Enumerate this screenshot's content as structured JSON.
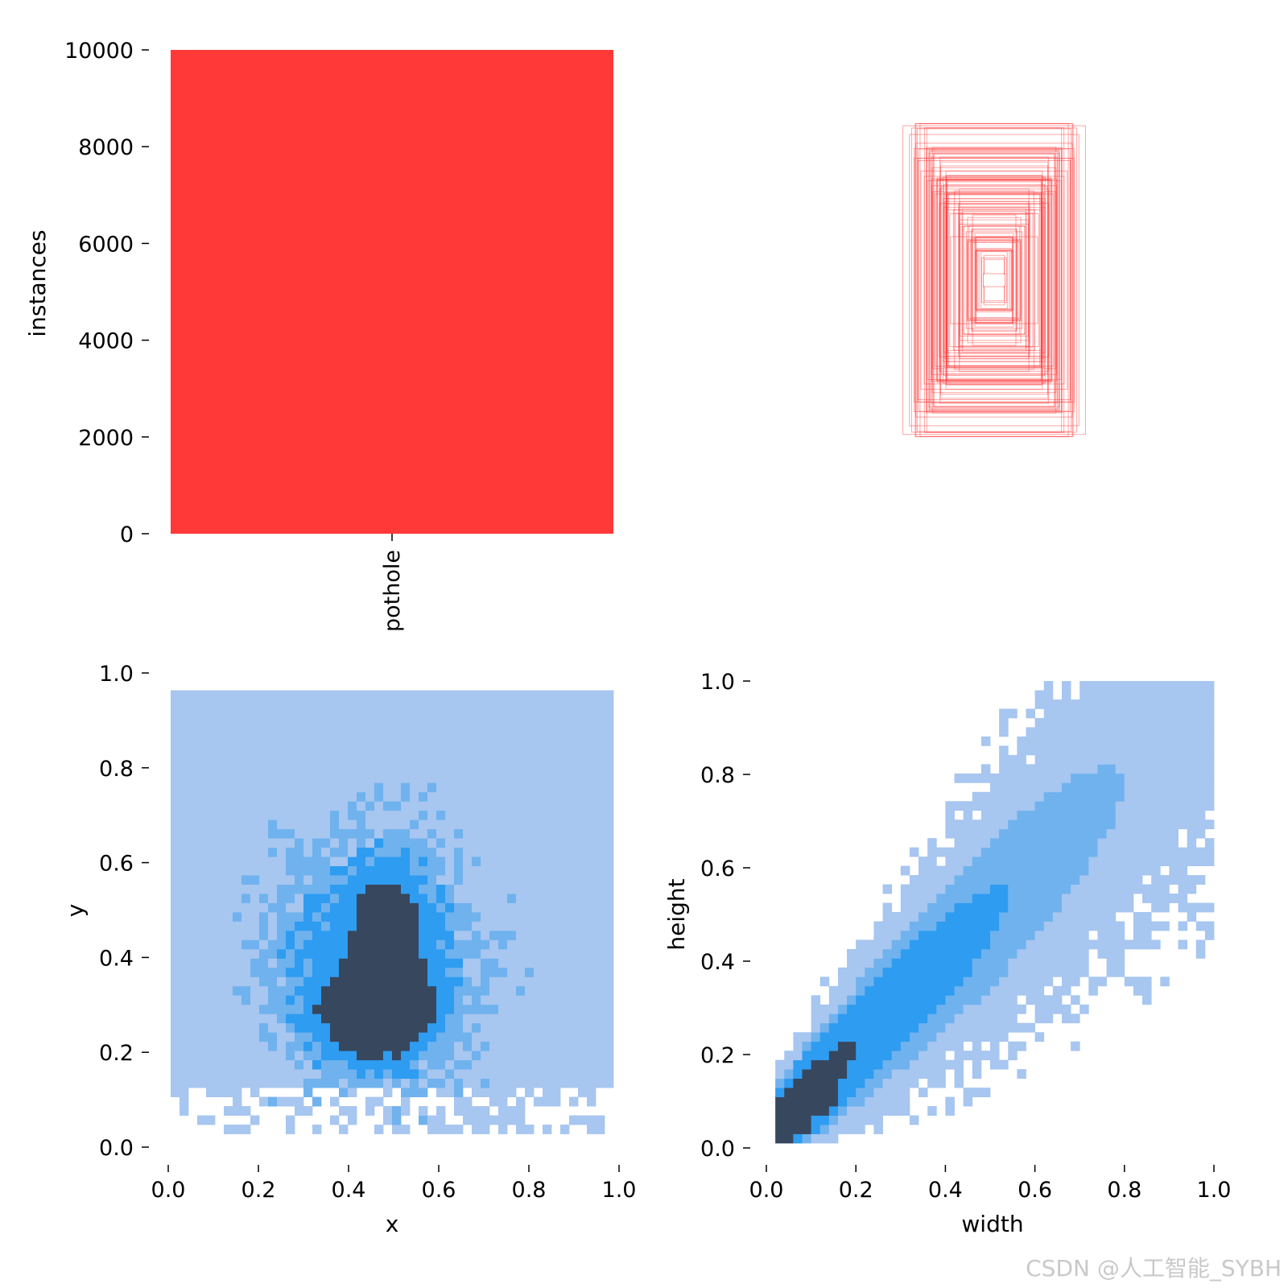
{
  "watermark": "CSDN @人工智能_SYBH",
  "colors": {
    "bar": "#ff3838",
    "box_stroke": "#ff3838",
    "hist_light": "#a7c6f0",
    "hist_mid": "#2e9cf0",
    "hist_dark": "#37475e"
  },
  "chart_data": [
    {
      "type": "bar",
      "categories": [
        "pothole"
      ],
      "values": [
        10000
      ],
      "ylabel": "instances",
      "ylim": [
        0,
        10000
      ],
      "yticks": [
        "0",
        "2000",
        "4000",
        "6000",
        "8000",
        "10000"
      ],
      "grid": false
    },
    {
      "type": "other",
      "subtype": "overlaid normalized bounding boxes (centered at 0.5, 0.5)",
      "boxes_sample": [
        {
          "w": 0.42,
          "h": 0.71
        },
        {
          "w": 0.38,
          "h": 0.7
        },
        {
          "w": 0.31,
          "h": 0.7
        },
        {
          "w": 0.39,
          "h": 0.67
        },
        {
          "w": 0.36,
          "h": 0.63
        },
        {
          "w": 0.3,
          "h": 0.6
        },
        {
          "w": 0.28,
          "h": 0.58
        },
        {
          "w": 0.35,
          "h": 0.55
        },
        {
          "w": 0.22,
          "h": 0.48
        },
        {
          "w": 0.16,
          "h": 0.42
        },
        {
          "w": 0.1,
          "h": 0.3
        },
        {
          "w": 0.2,
          "h": 0.2
        },
        {
          "w": 0.08,
          "h": 0.14
        },
        {
          "w": 0.05,
          "h": 0.03
        }
      ]
    },
    {
      "type": "heatmap",
      "subtype": "2D histogram of box centers",
      "xlabel": "x",
      "ylabel": "y",
      "xlim": [
        0,
        1
      ],
      "ylim": [
        0,
        1
      ],
      "xticks": [
        "0.0",
        "0.2",
        "0.4",
        "0.6",
        "0.8",
        "1.0"
      ],
      "yticks": [
        "0.0",
        "0.2",
        "0.4",
        "0.6",
        "0.8",
        "1.0"
      ],
      "bins": 50,
      "density_peaks": [
        {
          "x": 0.45,
          "y": 0.28,
          "density": "highest"
        },
        {
          "x": 0.48,
          "y": 0.45,
          "density": "high"
        },
        {
          "x": 0.5,
          "y": 0.3,
          "density": "high"
        }
      ],
      "coverage": "x from 0.0 to 1.0, y from 0.02 to 0.98"
    },
    {
      "type": "heatmap",
      "subtype": "2D histogram of box sizes",
      "xlabel": "width",
      "ylabel": "height",
      "xlim": [
        0,
        1
      ],
      "ylim": [
        0,
        1
      ],
      "xticks": [
        "0.0",
        "0.2",
        "0.4",
        "0.6",
        "0.8",
        "1.0"
      ],
      "yticks": [
        "0.0",
        "0.2",
        "0.4",
        "0.6",
        "0.8",
        "1.0"
      ],
      "bins": 50,
      "density_peaks": [
        {
          "x": 0.06,
          "y": 0.05,
          "density": "highest"
        },
        {
          "x": 0.11,
          "y": 0.11,
          "density": "high"
        }
      ],
      "trend": "height increases roughly with width"
    }
  ]
}
